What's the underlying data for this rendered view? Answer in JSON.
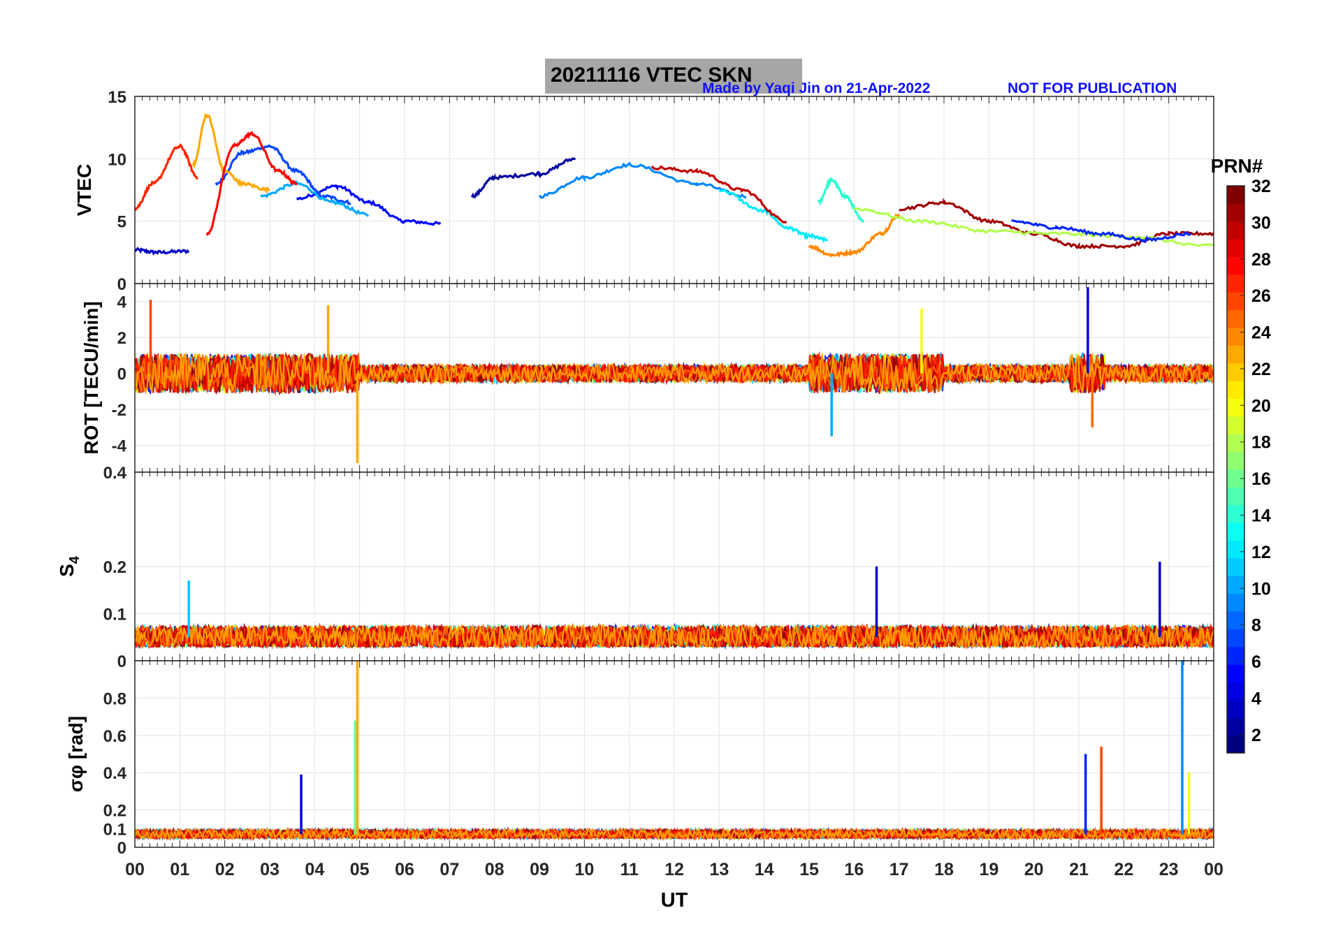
{
  "header": {
    "title": "20211116    VTEC  SKN",
    "credit": "Made by Yaqi Jin on 21-Apr-2022",
    "notice": "NOT FOR PUBLICATION"
  },
  "colorbar": {
    "label": "PRN#",
    "ticks": [
      "2",
      "4",
      "6",
      "8",
      "10",
      "12",
      "14",
      "16",
      "18",
      "20",
      "22",
      "24",
      "26",
      "28",
      "30",
      "32"
    ],
    "range": [
      1,
      32
    ],
    "colormap": "jet"
  },
  "x_axis": {
    "label": "UT",
    "tick_labels": [
      "00",
      "01",
      "02",
      "03",
      "04",
      "05",
      "06",
      "07",
      "08",
      "09",
      "10",
      "11",
      "12",
      "13",
      "14",
      "15",
      "16",
      "17",
      "18",
      "19",
      "20",
      "21",
      "22",
      "23",
      "00"
    ],
    "range": [
      0,
      24
    ]
  },
  "chart_data": [
    {
      "type": "line",
      "panel": "vtec",
      "ylabel": "VTEC",
      "ylim": [
        0,
        15
      ],
      "yticks": [
        "0",
        "5",
        "10",
        "15"
      ],
      "grid": true,
      "series": [
        {
          "prn": 3,
          "x": [
            0.0,
            0.5,
            1.2
          ],
          "y": [
            2.7,
            2.5,
            2.6
          ]
        },
        {
          "prn": 5,
          "x": [
            3.6,
            4.5,
            5.2,
            6.0,
            6.8
          ],
          "y": [
            6.8,
            7.8,
            6.5,
            5.0,
            4.8
          ]
        },
        {
          "prn": 7,
          "x": [
            1.8,
            2.4,
            3.0,
            3.6,
            4.2,
            4.8
          ],
          "y": [
            8.0,
            10.5,
            11.0,
            9.0,
            7.0,
            6.5
          ]
        },
        {
          "prn": 10,
          "x": [
            2.8,
            3.6,
            4.4,
            5.2
          ],
          "y": [
            7.0,
            8.0,
            6.5,
            5.5
          ]
        },
        {
          "prn": 9,
          "x": [
            9.0,
            10.0,
            11.0,
            12.5,
            13.6
          ],
          "y": [
            7.0,
            8.5,
            9.5,
            8.0,
            7.0
          ]
        },
        {
          "prn": 2,
          "x": [
            7.5,
            8.0,
            9.0,
            9.8
          ],
          "y": [
            7.0,
            8.5,
            8.8,
            10.0
          ]
        },
        {
          "prn": 12,
          "x": [
            13.0,
            14.0,
            14.5,
            15.0,
            15.4
          ],
          "y": [
            7.5,
            5.8,
            4.5,
            3.8,
            3.5
          ]
        },
        {
          "prn": 14,
          "x": [
            15.2,
            15.5,
            15.8,
            16.2
          ],
          "y": [
            6.5,
            8.3,
            7.0,
            5.0
          ]
        },
        {
          "prn": 24,
          "x": [
            15.0,
            15.5,
            16.0,
            16.6,
            17.0
          ],
          "y": [
            3.0,
            2.3,
            2.5,
            4.0,
            5.5
          ]
        },
        {
          "prn": 30,
          "x": [
            11.5,
            12.5,
            13.5,
            14.5
          ],
          "y": [
            9.3,
            9.0,
            7.5,
            5.0
          ]
        },
        {
          "prn": 27,
          "x": [
            0.0,
            0.4,
            1.0,
            1.4
          ],
          "y": [
            6.0,
            8.0,
            11.0,
            8.5
          ]
        },
        {
          "prn": 23,
          "x": [
            1.3,
            1.6,
            2.0,
            2.4,
            3.0
          ],
          "y": [
            9.5,
            13.5,
            9.0,
            8.0,
            7.5
          ]
        },
        {
          "prn": 28,
          "x": [
            1.6,
            2.2,
            2.6,
            3.2,
            3.6
          ],
          "y": [
            4.0,
            11.0,
            12.0,
            9.0,
            8.0
          ]
        },
        {
          "prn": 31,
          "x": [
            17.0,
            18.0,
            19.0,
            20.0,
            21.0,
            22.0,
            23.0,
            24.0
          ],
          "y": [
            6.0,
            6.5,
            5.0,
            4.0,
            3.0,
            3.0,
            4.0,
            4.0
          ]
        },
        {
          "prn": 18,
          "x": [
            16.0,
            17.5,
            19.0,
            20.5,
            22.0,
            24.0
          ],
          "y": [
            6.0,
            5.0,
            4.2,
            4.0,
            3.8,
            3.0
          ]
        },
        {
          "prn": 6,
          "x": [
            19.5,
            20.5,
            21.5,
            22.5,
            23.5
          ],
          "y": [
            5.0,
            4.5,
            4.0,
            3.5,
            4.0
          ]
        }
      ]
    },
    {
      "type": "line",
      "panel": "rot",
      "ylabel": "ROT [TECU/min]",
      "ylim": [
        -5.5,
        5
      ],
      "yticks": [
        "-4",
        "-2",
        "0",
        "2",
        "4"
      ],
      "grid": true,
      "spikes": [
        {
          "prn": 26,
          "x": 0.35,
          "y": 4.1
        },
        {
          "prn": 23,
          "x": 4.3,
          "y": 3.8
        },
        {
          "prn": 23,
          "x": 4.95,
          "y": -5.0
        },
        {
          "prn": 10,
          "x": 15.5,
          "y": -3.5
        },
        {
          "prn": 20,
          "x": 17.5,
          "y": 3.6
        },
        {
          "prn": 4,
          "x": 21.2,
          "y": 4.8
        },
        {
          "prn": 25,
          "x": 21.3,
          "y": -3.0
        }
      ]
    },
    {
      "type": "line",
      "panel": "s4",
      "ylabel": "S4",
      "ylim": [
        0,
        0.4
      ],
      "yticks": [
        "0",
        "0.1",
        "0.2",
        "0.4"
      ],
      "grid": true,
      "baseline": 0.05,
      "spikes": [
        {
          "prn": 11,
          "x": 1.2,
          "y": 0.17
        },
        {
          "prn": 3,
          "x": 16.5,
          "y": 0.2
        },
        {
          "prn": 3,
          "x": 22.8,
          "y": 0.21
        }
      ]
    },
    {
      "type": "line",
      "panel": "sigma_phi",
      "ylabel": "σφ [rad]",
      "ylim": [
        0,
        1
      ],
      "yticks": [
        "0",
        "0.1",
        "0.2",
        "0.4",
        "0.6",
        "0.8"
      ],
      "grid": true,
      "baseline": 0.07,
      "spikes": [
        {
          "prn": 4,
          "x": 3.7,
          "y": 0.39
        },
        {
          "prn": 23,
          "x": 4.95,
          "y": 1.0
        },
        {
          "prn": 16,
          "x": 4.9,
          "y": 0.68
        },
        {
          "prn": 6,
          "x": 21.15,
          "y": 0.5
        },
        {
          "prn": 26,
          "x": 21.5,
          "y": 0.54
        },
        {
          "prn": 9,
          "x": 23.3,
          "y": 1.0
        },
        {
          "prn": 20,
          "x": 23.45,
          "y": 0.4
        }
      ]
    }
  ]
}
